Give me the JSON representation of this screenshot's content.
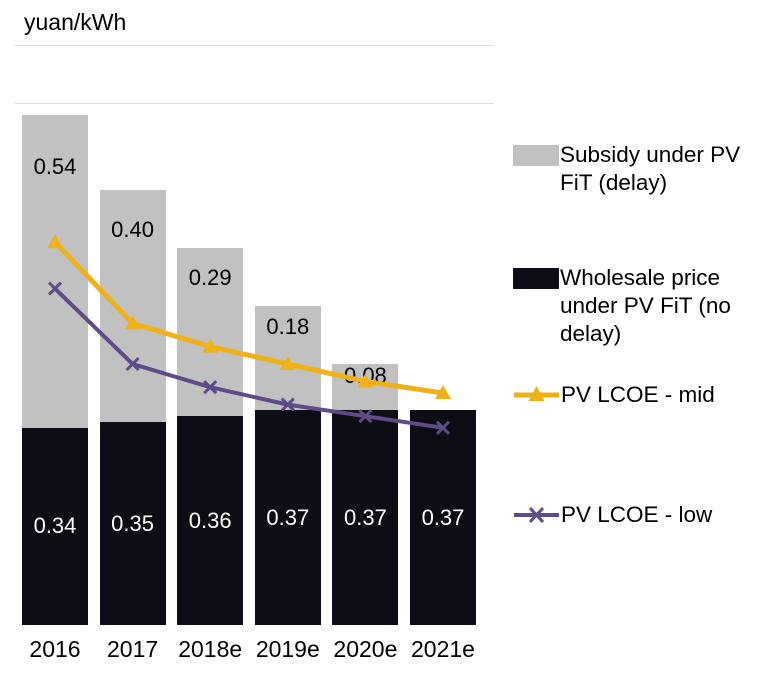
{
  "colors": {
    "subsidy_bar": "#c1c1c1",
    "wholesale_bar": "#0d0d15",
    "lcoe_mid": "#efb118",
    "lcoe_low": "#5e4b88",
    "gridline": "#dcdcdc",
    "label_on_black": "#ffffff",
    "label_on_gray": "#000000"
  },
  "chart_data": {
    "type": "bar",
    "title": "",
    "ylabel": "yuan/kWh",
    "xlabel": "",
    "ylim": [
      0,
      1.0
    ],
    "grid": "top gridlines only (at 0.9 and 1.0)",
    "legend_position": "right",
    "categories": [
      "2016",
      "2017",
      "2018e",
      "2019e",
      "2020e",
      "2021e"
    ],
    "series": [
      {
        "name": "Wholesale price under PV FiT (no delay)",
        "type": "bar-stack-bottom",
        "values": [
          0.34,
          0.35,
          0.36,
          0.37,
          0.37,
          0.37
        ]
      },
      {
        "name": "Subsidy under PV FiT (delay)",
        "type": "bar-stack-top",
        "values": [
          0.54,
          0.4,
          0.29,
          0.18,
          0.08,
          0
        ]
      },
      {
        "name": "PV LCOE - mid",
        "type": "line",
        "marker": "triangle",
        "values": [
          0.66,
          0.52,
          0.48,
          0.45,
          0.42,
          0.4
        ]
      },
      {
        "name": "PV LCOE - low",
        "type": "line",
        "marker": "x",
        "values": [
          0.58,
          0.45,
          0.41,
          0.38,
          0.36,
          0.34
        ]
      }
    ],
    "bar_labels": {
      "wholesale": [
        "0.34",
        "0.35",
        "0.36",
        "0.37",
        "0.37",
        "0.37"
      ],
      "subsidy": [
        "0.54",
        "0.40",
        "0.29",
        "0.18",
        "0.08",
        ""
      ]
    }
  },
  "legend": {
    "items": [
      {
        "label": "Subsidy under PV FiT (delay)",
        "swatch": "gray-square"
      },
      {
        "label": "Wholesale price under PV FiT (no delay)",
        "swatch": "black-square"
      },
      {
        "label": "PV LCOE - mid",
        "swatch": "yellow-line-triangle"
      },
      {
        "label": "PV LCOE - low",
        "swatch": "purple-line-x"
      }
    ]
  }
}
